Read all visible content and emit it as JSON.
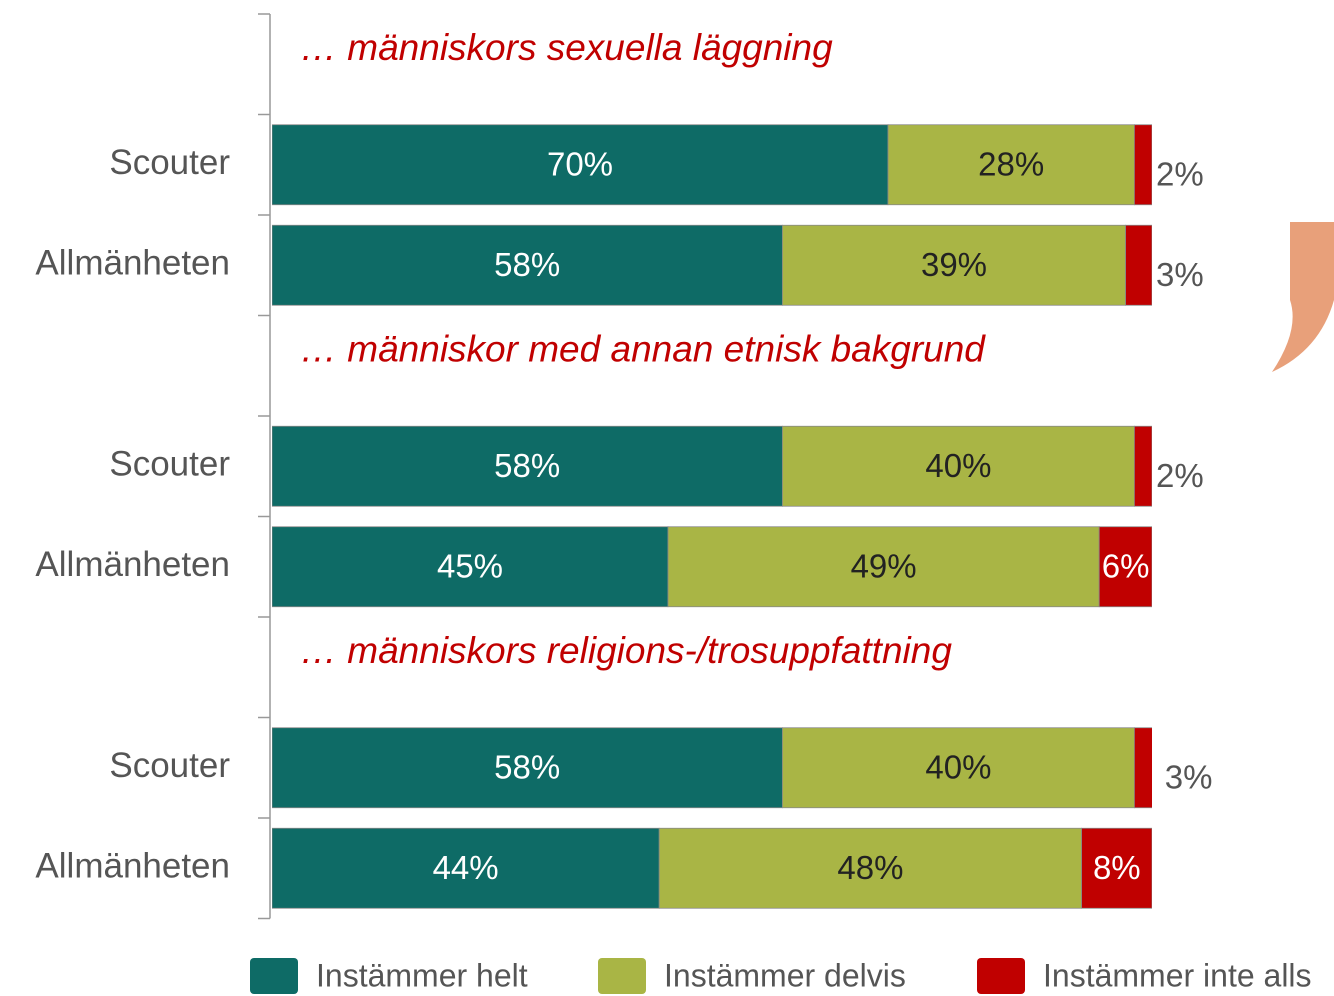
{
  "chart_data": {
    "type": "stacked_bar_horizontal",
    "annotations": [
      "… människors sexuella läggning",
      "… människor med annan etnisk bakgrund",
      "…  människors religions-/trosuppfattning"
    ],
    "categories": [
      null,
      "Scouter",
      "Allmänheten",
      null,
      "Scouter",
      "Allmänheten",
      null,
      "Scouter",
      "Allmänheten"
    ],
    "xlim": [
      0,
      100
    ],
    "legend": "bottom",
    "series": [
      {
        "name": "Instämmer helt",
        "color": "#0e6b66",
        "values": [
          null,
          70,
          58,
          null,
          58,
          45,
          null,
          58,
          44
        ],
        "value_labels": [
          null,
          "70%",
          "58%",
          null,
          "58%",
          "45%",
          null,
          "58%",
          "44%"
        ]
      },
      {
        "name": "Instämmer delvis",
        "color": "#a9b545",
        "values": [
          null,
          28,
          39,
          null,
          40,
          49,
          null,
          40,
          48
        ],
        "value_labels": [
          null,
          "28%",
          "39%",
          null,
          "40%",
          "49%",
          null,
          "40%",
          "48%"
        ]
      },
      {
        "name": "Instämmer inte alls",
        "color": "#c00000",
        "values": [
          null,
          2,
          3,
          null,
          2,
          6,
          null,
          3,
          8
        ],
        "value_labels": [
          null,
          "2%",
          "3%",
          null,
          "2%",
          "6%",
          null,
          "3%",
          "8%"
        ]
      }
    ]
  }
}
